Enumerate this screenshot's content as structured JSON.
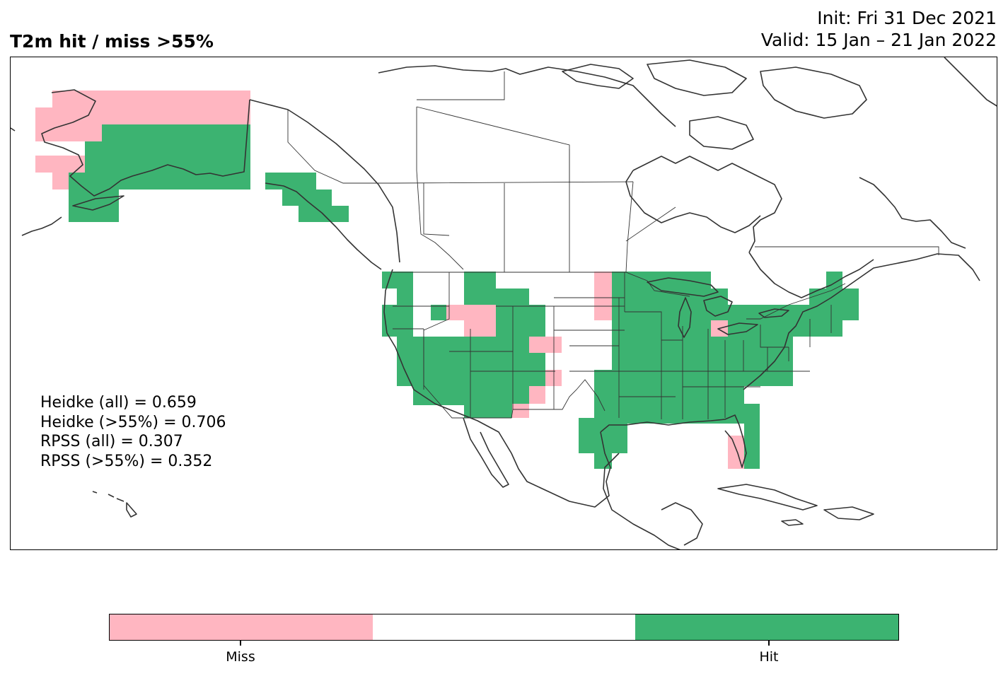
{
  "title": "T2m hit / miss  >55%",
  "init": "Init: Fri 31 Dec 2021",
  "valid": "Valid: 15 Jan – 21 Jan 2022",
  "stats": {
    "heidke_all": "Heidke (all) = 0.659",
    "heidke_55": "Heidke (>55%) = 0.706",
    "rpss_all": "RPSS (all) = 0.307",
    "rpss_55": "RPSS (>55%) = 0.352"
  },
  "colorbar": {
    "labels": [
      "Miss",
      "Hit"
    ],
    "colors": [
      "#ffb6c1",
      "#ffffff",
      "#3cb371"
    ]
  },
  "colors": {
    "miss": "#ffb6c1",
    "hit": "#3cb371",
    "coast": "#333333",
    "border": "#333333"
  }
}
